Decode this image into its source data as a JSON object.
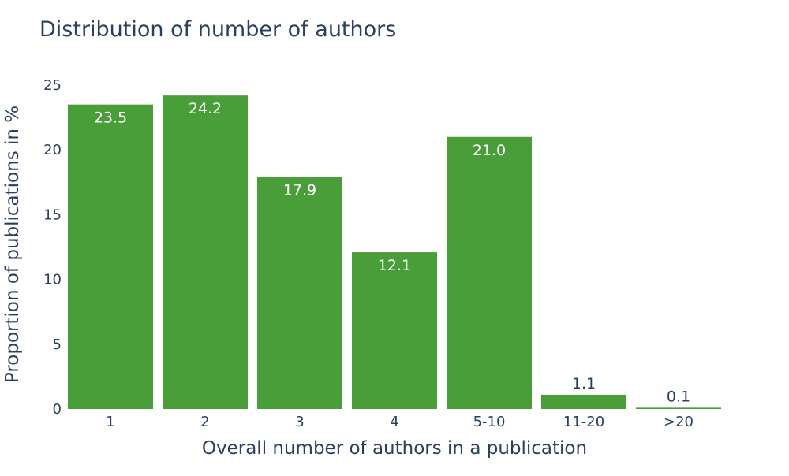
{
  "chart_data": {
    "type": "bar",
    "title": "Distribution of number of authors",
    "xlabel": "Overall number of authors in a publication",
    "ylabel": "Proportion of publications in %",
    "categories": [
      "1",
      "2",
      "3",
      "4",
      "5-10",
      "11-20",
      ">20"
    ],
    "values": [
      23.5,
      24.2,
      17.9,
      12.1,
      21.0,
      1.1,
      0.1
    ],
    "value_labels": [
      "23.5",
      "24.2",
      "17.9",
      "12.1",
      "21.0",
      "1.1",
      "0.1"
    ],
    "ylim": [
      0,
      25
    ],
    "yticks": [
      0,
      5,
      10,
      15,
      20,
      25
    ],
    "grid": false,
    "legend": "none",
    "colors": {
      "bar": "#4a9e3a",
      "text": "#2a3f5f",
      "label_inside": "#ffffff"
    }
  }
}
